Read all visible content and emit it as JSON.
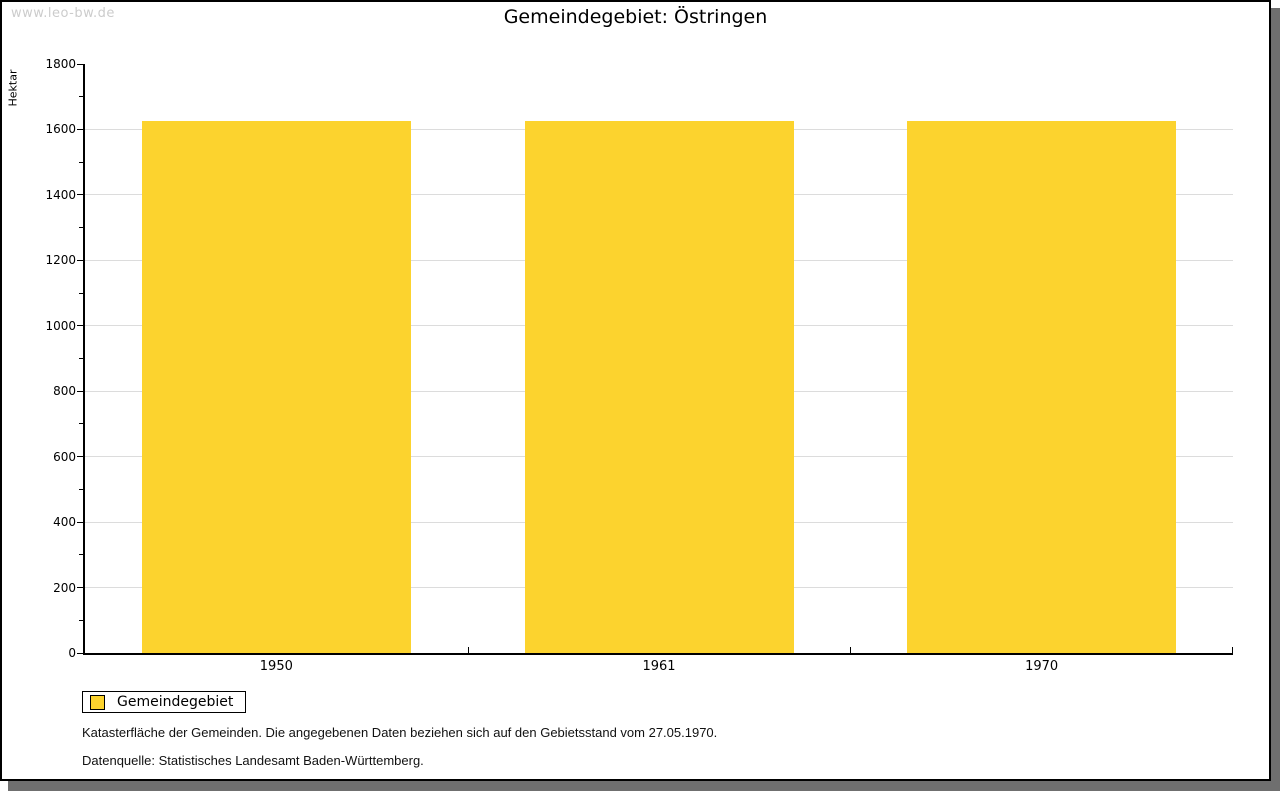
{
  "page": {
    "watermark": "www.leo-bw.de",
    "title": "Gemeindegebiet: Östringen"
  },
  "chart_data": {
    "type": "bar",
    "title": "Gemeindegebiet: Östringen",
    "categories": [
      "1950",
      "1961",
      "1970"
    ],
    "series": [
      {
        "name": "Gemeindegebiet",
        "values": [
          1625,
          1625,
          1625
        ]
      }
    ],
    "xlabel": "",
    "ylabel": "Hektar",
    "ylim": [
      0,
      1800
    ],
    "ytick_step": 200,
    "yminor_step": 100,
    "grid": true,
    "legend_position": "bottom-left",
    "bar_color": "#FCD32E"
  },
  "legend": {
    "label": "Gemeindegebiet",
    "swatch_color": "#FCD32E"
  },
  "footer": {
    "note": "Katasterfläche der Gemeinden. Die angegebenen Daten beziehen sich auf den Gebietsstand vom 27.05.1970.",
    "source": "Datenquelle: Statistisches Landesamt Baden-Württemberg."
  },
  "colors": {
    "bar": "#FCD32E",
    "gridline": "#DCDCDC",
    "axis": "#000000",
    "watermark": "#CCCCCC",
    "frame_shadow": "#6F6F6F"
  }
}
